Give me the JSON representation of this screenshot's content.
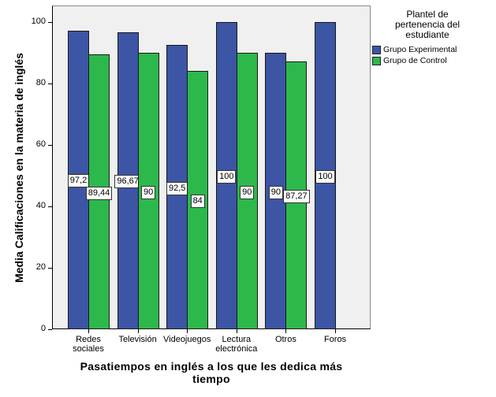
{
  "chart_data": {
    "type": "bar",
    "title": "",
    "xlabel": "Pasatiempos en inglés a los que les dedica más tiempo",
    "ylabel": "Media Calificaciones en la materia de inglés",
    "ylim": [
      0,
      105
    ],
    "yticks": [
      0,
      20,
      40,
      60,
      80,
      100
    ],
    "grid": false,
    "legend_position": "right",
    "legend_title": "Plantel de pertenencia del estudiante",
    "categories": [
      "Redes sociales",
      "Televisión",
      "Videojuegos",
      "Lectura electrónica",
      "Otros",
      "Foros"
    ],
    "series": [
      {
        "name": "Grupo Experimental",
        "color": "#3c55a5",
        "values": [
          97.2,
          96.67,
          92.5,
          100,
          90,
          100
        ],
        "labels": [
          "97,2",
          "96,67",
          "92,5",
          "100",
          "90",
          "100"
        ]
      },
      {
        "name": "Grupo de Control",
        "color": "#2db84b",
        "values": [
          89.44,
          90,
          84,
          90,
          87.27,
          null
        ],
        "labels": [
          "89,44",
          "90",
          "84",
          "90",
          "87,27",
          ""
        ]
      }
    ]
  },
  "axis": {
    "xlabel_line1": "Pasatiempos en inglés a los que les dedica más",
    "xlabel_line2": "tiempo",
    "ylabel": "Media Calificaciones en la materia de inglés",
    "categories_display": [
      [
        "Redes",
        "sociales"
      ],
      [
        "Televisión",
        ""
      ],
      [
        "Videojuegos",
        ""
      ],
      [
        "Lectura",
        "electrónica"
      ],
      [
        "Otros",
        ""
      ],
      [
        "Foros",
        ""
      ]
    ]
  },
  "legend": {
    "title_lines": [
      "Plantel de",
      "pertenencia del",
      "estudiante"
    ],
    "items": [
      {
        "label": "Grupo Experimental",
        "color": "#3c55a5"
      },
      {
        "label": "Grupo de Control",
        "color": "#2db84b"
      }
    ]
  }
}
